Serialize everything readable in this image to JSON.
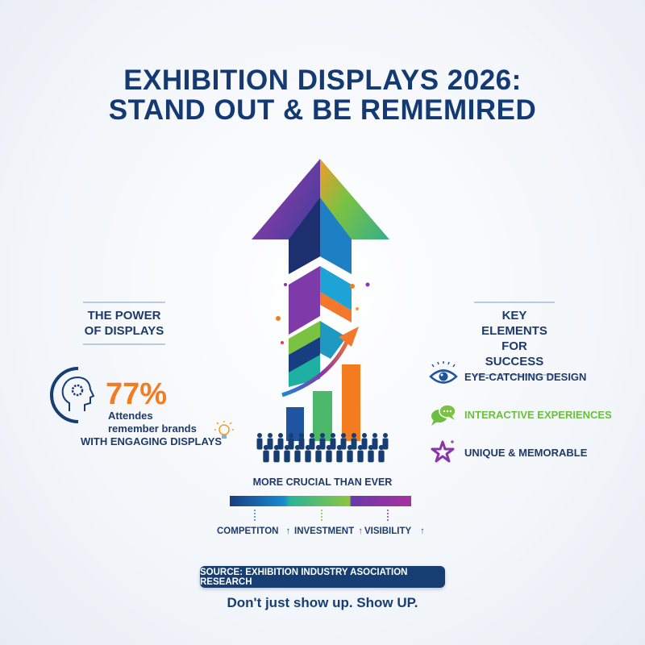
{
  "title": {
    "line1": "EXHIBITION DISPLAYS 2026:",
    "line2": "STAND OUT & BE REMEMIRED"
  },
  "left": {
    "header_line1": "THE POWER",
    "header_line2": "OF DISPLAYS",
    "stat_value": "77%",
    "stat_line1": "Attendes",
    "stat_line2": "remember brands",
    "stat_line3": "WITH ENGAGING DISPLAYS",
    "icons": [
      "head-gear-icon",
      "lightbulb-icon"
    ]
  },
  "right": {
    "header_line1": "KEY ELEMENTS",
    "header_line2": "FOR SUCCESS",
    "items": [
      {
        "label": "EYE-CATCHING DESIGN",
        "icon": "eye-icon",
        "color": "#1d3a6b"
      },
      {
        "label": "INTERACTIVE EXPERIENCES",
        "icon": "chat-bubbles-icon",
        "color": "#6abf3f"
      },
      {
        "label": "UNIQUE & MEMORABLE",
        "icon": "star-icon",
        "color": "#1d3a6b"
      }
    ]
  },
  "center": {
    "bar_title": "MORE CRUCIAL THAN EVER",
    "segments": [
      {
        "label": "COMPETITON",
        "arrow": "↑",
        "color": "#1a5aa6"
      },
      {
        "label": "INVESTMENT",
        "arrow": "↑",
        "color": "#5cbf5a"
      },
      {
        "label": "VISIBILITY",
        "arrow": "↑",
        "color": "#8a35a8"
      }
    ]
  },
  "footer": {
    "source": "SOURCE: EXHIBITION INDUSTRY ASOCIATION RESEARCH",
    "tagline": "Don't just show up. Show UP."
  },
  "colors": {
    "navy": "#143a73",
    "orange": "#f47c20",
    "green": "#6abf3f",
    "purple": "#8a35a8"
  }
}
